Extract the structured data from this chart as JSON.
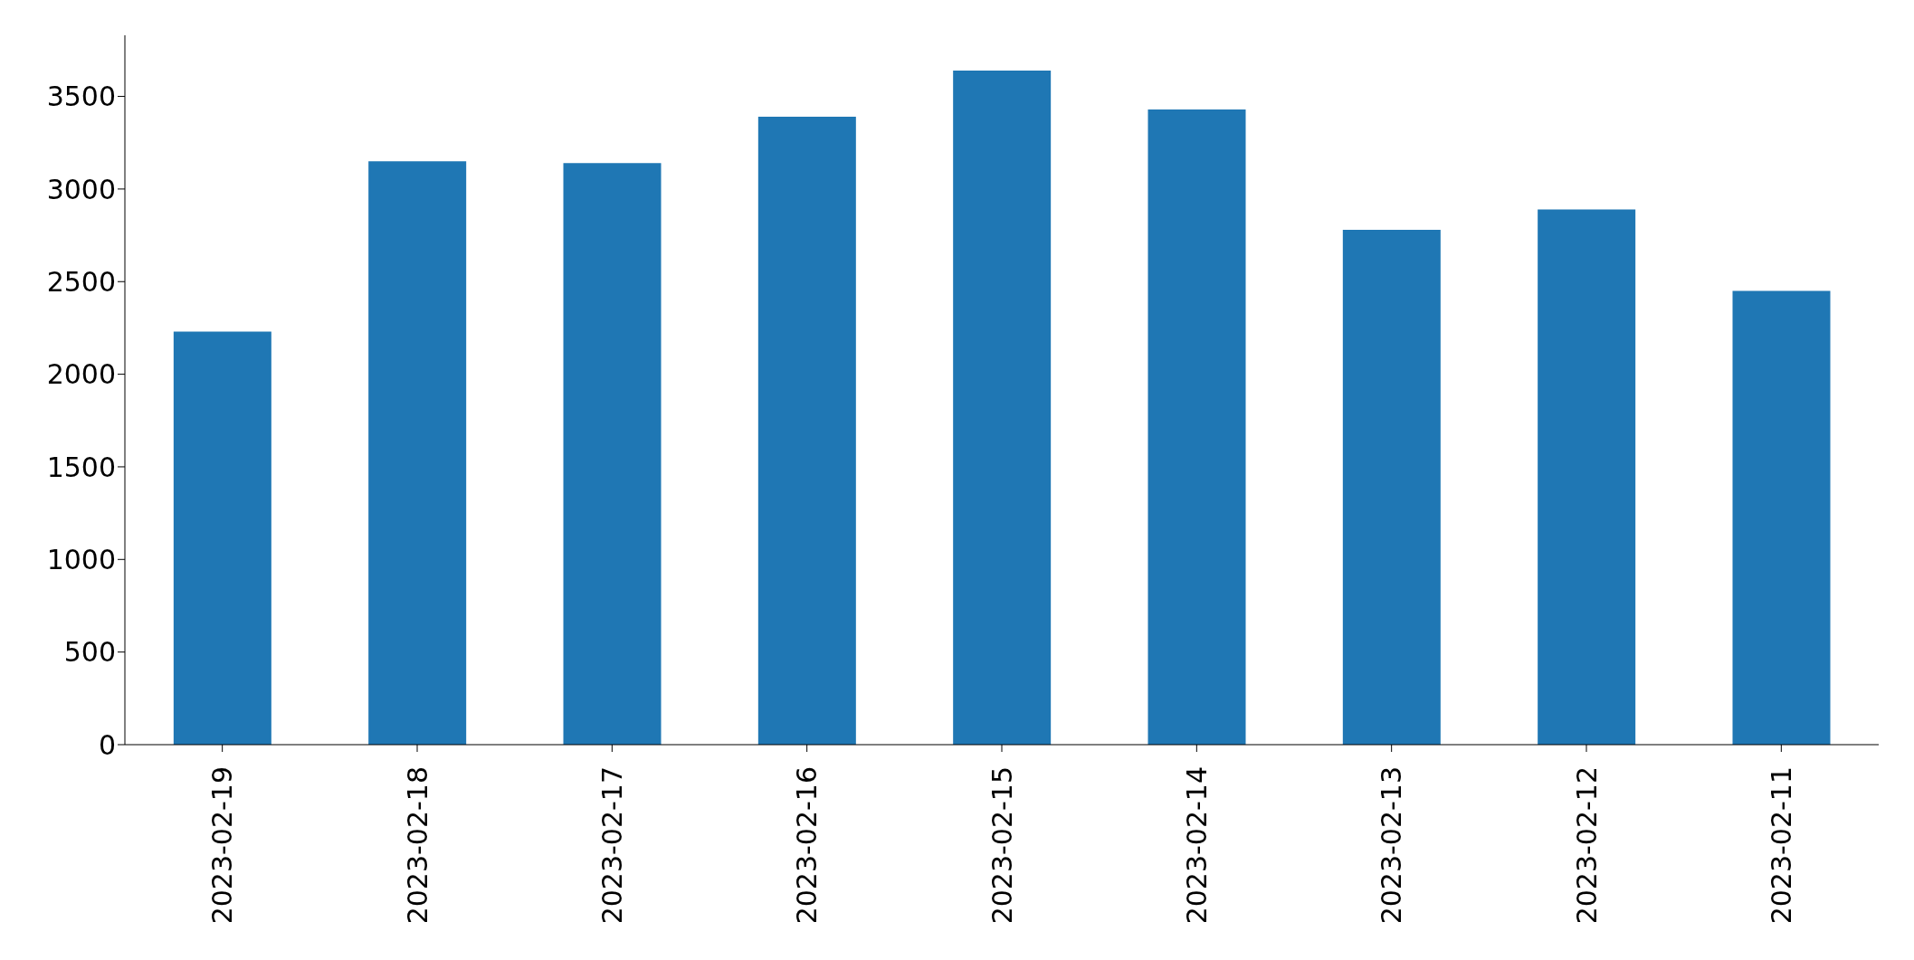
{
  "chart_data": {
    "type": "bar",
    "categories": [
      "2023-02-19",
      "2023-02-18",
      "2023-02-17",
      "2023-02-16",
      "2023-02-15",
      "2023-02-14",
      "2023-02-13",
      "2023-02-12",
      "2023-02-11"
    ],
    "values": [
      2230,
      3150,
      3140,
      3390,
      3640,
      3430,
      2780,
      2890,
      2450
    ],
    "color": "#1f77b4",
    "ylim": [
      0,
      3830
    ],
    "yticks": [
      0,
      500,
      1000,
      1500,
      2000,
      2500,
      3000,
      3500
    ],
    "grid": false,
    "legend": false
  }
}
